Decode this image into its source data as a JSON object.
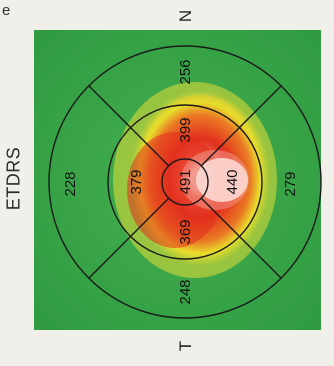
{
  "panel_letter": "e",
  "side_label": "ETDRS",
  "orientation": {
    "top_label": "N",
    "bottom_label": "T"
  },
  "sectors": {
    "center": "491",
    "inner_superior": "399",
    "inner_nasal": "440",
    "inner_inferior": "369",
    "inner_temporal": "379",
    "outer_superior": "256",
    "outer_nasal": "279",
    "outer_inferior": "248",
    "outer_temporal": "228"
  },
  "colors": {
    "map_green": "#3aa64a",
    "yellow": "#e8de2c",
    "red": "#e2301e",
    "white": "#ffffff",
    "grid_line": "#1a1a1a"
  }
}
